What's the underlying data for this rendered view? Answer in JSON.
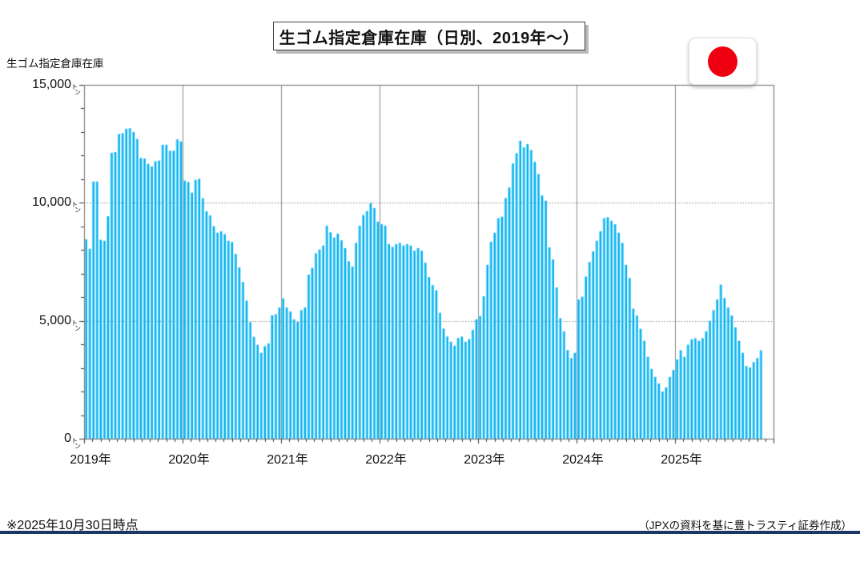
{
  "header": {
    "title": "生ゴム指定倉庫在庫（日別、2019年～）"
  },
  "flag": {
    "name": "japan-flag",
    "circle_color": "#ee0010"
  },
  "footer": {
    "note": "※2025年10月30日時点",
    "source": "（JPXの資料を基に豊トラスティ証券作成）",
    "line_color": "#1d3564"
  },
  "chart_data": {
    "type": "bar",
    "title": "生ゴム指定倉庫在庫（日別、2019年～）",
    "axis_title": "生ゴム指定倉庫在庫",
    "unit": "トン",
    "ylabel": "生ゴム指定倉庫在庫（トン）",
    "xlabel": "",
    "ylim": [
      0,
      15000
    ],
    "y_ticks": [
      {
        "label": "15,000",
        "value": 15000
      },
      {
        "label": "10,000",
        "value": 10000
      },
      {
        "label": "5,000",
        "value": 5000
      },
      {
        "label": "0",
        "value": 0
      }
    ],
    "grid_y_dotted": [
      5000,
      10000
    ],
    "legend": "none",
    "grid": "on",
    "bar_color": "#00b0f0",
    "bar_highlight_color": "#8adcf8",
    "grid_color": "#8a8a8a",
    "border_color": "#7f7f7f",
    "tick_color": "#3a3a3a",
    "categories": [
      "2019年",
      "2020年",
      "2021年",
      "2022年",
      "2023年",
      "2024年",
      "2025年"
    ],
    "bars_per_year": 27,
    "series": [
      {
        "name": "生ゴム指定倉庫在庫",
        "values": [
          8450,
          8050,
          10900,
          10900,
          8430,
          8390,
          9430,
          12120,
          12150,
          12920,
          12950,
          13140,
          13160,
          13000,
          12710,
          11900,
          11880,
          11650,
          11540,
          11760,
          11790,
          12460,
          12460,
          12210,
          12210,
          12690,
          12600,
          10940,
          10880,
          10430,
          10970,
          11020,
          10200,
          9640,
          9470,
          9010,
          8730,
          8790,
          8670,
          8390,
          8340,
          7830,
          7260,
          6640,
          5850,
          4940,
          4320,
          3980,
          3640,
          3920,
          4040,
          5230,
          5280,
          5560,
          5950,
          5560,
          5390,
          5060,
          4950,
          5450,
          5560,
          6960,
          7240,
          7860,
          8020,
          8190,
          9030,
          8750,
          8530,
          8690,
          8410,
          8080,
          7520,
          7300,
          8300,
          9030,
          9480,
          9650,
          9980,
          9780,
          9200,
          9090,
          9030,
          8250,
          8130,
          8250,
          8300,
          8190,
          8250,
          8190,
          7970,
          8080,
          7970,
          7460,
          6850,
          6510,
          6290,
          5340,
          4670,
          4330,
          4110,
          3940,
          4270,
          4330,
          4110,
          4220,
          4610,
          5060,
          5200,
          6040,
          7370,
          8350,
          8730,
          9350,
          9410,
          10200,
          10650,
          11670,
          12100,
          12630,
          12350,
          12490,
          12240,
          11730,
          11220,
          10310,
          10090,
          8110,
          7600,
          6410,
          5110,
          4550,
          3760,
          3420,
          3640,
          5900,
          6020,
          6870,
          7490,
          7940,
          8390,
          8790,
          9350,
          9390,
          9240,
          9090,
          8730,
          8300,
          7370,
          6810,
          5510,
          5220,
          4660,
          4150,
          3470,
          2960,
          2620,
          2340,
          2000,
          2170,
          2620,
          2910,
          3360,
          3750,
          3470,
          3980,
          4210,
          4260,
          4150,
          4260,
          4550,
          5000,
          5450,
          5900,
          6530,
          5960,
          5560,
          5220,
          4720,
          4150,
          3640,
          3080,
          3020,
          3250,
          3420,
          3750
        ]
      }
    ]
  }
}
